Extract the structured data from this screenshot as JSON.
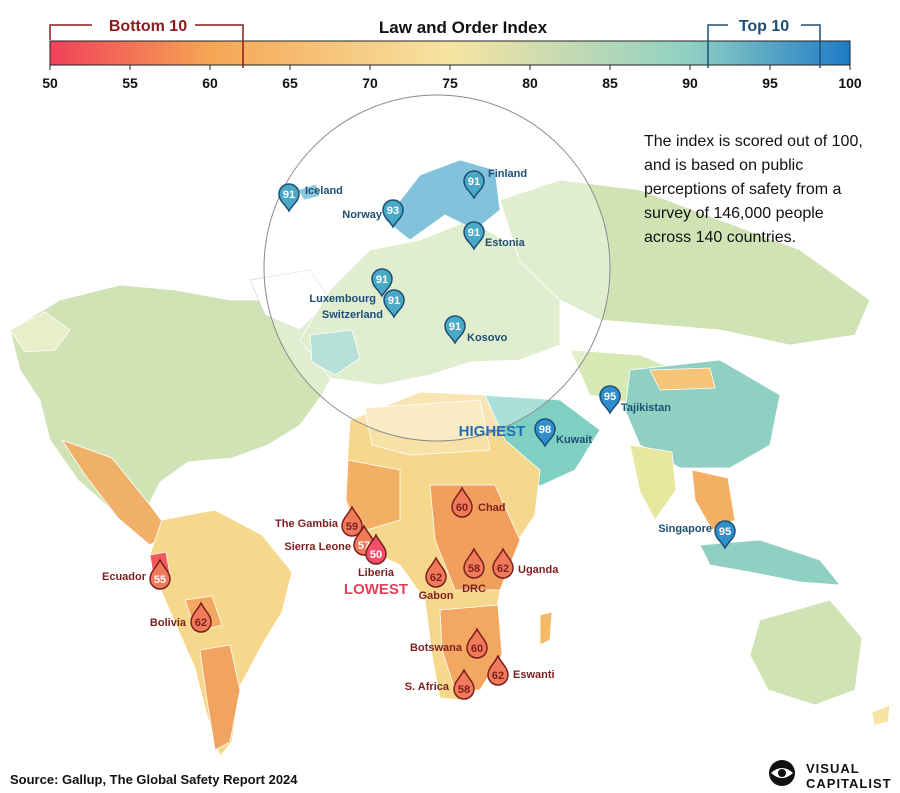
{
  "title": "Law and Order Index",
  "legend": {
    "bottom_label": "Bottom 10",
    "top_label": "Top 10",
    "ticks": [
      "50",
      "55",
      "60",
      "65",
      "70",
      "75",
      "80",
      "85",
      "90",
      "95",
      "100"
    ],
    "range": [
      50,
      100
    ]
  },
  "note": "The index is scored out of 100, and is based on public perceptions of safety from a survey of 146,000 people across 140 countries.",
  "highest_label": "HIGHEST",
  "lowest_label": "LOWEST",
  "source": "Source: Gallup, The Global Safety Report 2024",
  "brand": {
    "line1": "VISUAL",
    "line2": "CAPITALIST"
  },
  "colors": {
    "low": "#f0405a",
    "mid_low": "#f5a554",
    "mid": "#f7e4a2",
    "mid_high": "#8fd0c3",
    "high": "#1f7bc6",
    "top_marker": "#4aa9c6",
    "bottom_marker": "#f07a5a",
    "top_text": "#1d4f74",
    "bottom_text": "#7d1f1f",
    "highest_text": "#1f6fb5",
    "lowest_text": "#e0405a"
  },
  "markers": [
    {
      "name": "Iceland",
      "score": 91,
      "group": "top"
    },
    {
      "name": "Norway",
      "score": 93,
      "group": "top"
    },
    {
      "name": "Finland",
      "score": 91,
      "group": "top"
    },
    {
      "name": "Estonia",
      "score": 91,
      "group": "top"
    },
    {
      "name": "Luxembourg",
      "score": 91,
      "group": "top"
    },
    {
      "name": "Switzerland",
      "score": 91,
      "group": "top"
    },
    {
      "name": "Kosovo",
      "score": 91,
      "group": "top"
    },
    {
      "name": "Tajikistan",
      "score": 95,
      "group": "top"
    },
    {
      "name": "Kuwait",
      "score": 98,
      "group": "top"
    },
    {
      "name": "Singapore",
      "score": 95,
      "group": "top"
    },
    {
      "name": "Chad",
      "score": 60,
      "group": "bottom"
    },
    {
      "name": "The Gambia",
      "score": 59,
      "group": "bottom"
    },
    {
      "name": "Sierra Leone",
      "score": 57,
      "group": "bottom"
    },
    {
      "name": "Liberia",
      "score": 50,
      "group": "bottom"
    },
    {
      "name": "Ecuador",
      "score": 55,
      "group": "bottom"
    },
    {
      "name": "Bolivia",
      "score": 62,
      "group": "bottom"
    },
    {
      "name": "Gabon",
      "score": 62,
      "group": "bottom"
    },
    {
      "name": "DRC",
      "score": 58,
      "group": "bottom"
    },
    {
      "name": "Uganda",
      "score": 62,
      "group": "bottom"
    },
    {
      "name": "Botswana",
      "score": 60,
      "group": "bottom"
    },
    {
      "name": "Eswanti",
      "score": 62,
      "group": "bottom"
    },
    {
      "name": "S. Africa",
      "score": 58,
      "group": "bottom"
    }
  ]
}
